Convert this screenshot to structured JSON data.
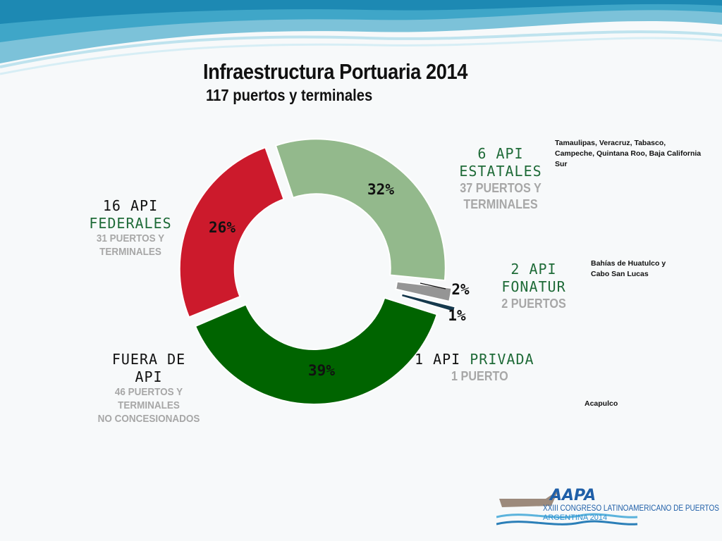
{
  "slide": {
    "title": "Infraestructura Portuaria 2014",
    "subtitle": "117 puertos y terminales"
  },
  "chart_data": {
    "type": "pie",
    "donut": true,
    "slices": [
      {
        "label": "ESTATALES",
        "value": 32,
        "display": "32%",
        "color": "#93b98c"
      },
      {
        "label": "FONATUR",
        "value": 2,
        "display": "2%",
        "color": "#959595"
      },
      {
        "label": "PRIVADA",
        "value": 1,
        "display": "1%",
        "color": "#16394d"
      },
      {
        "label": "FUERA DE API",
        "value": 39,
        "display": "39%",
        "color": "#006400"
      },
      {
        "label": "FEDERALES",
        "value": 26,
        "display": "26%",
        "color": "#cc1a2c"
      }
    ]
  },
  "labels": {
    "federales": {
      "line1": "16 API",
      "line2": "FEDERALES",
      "detail1": "31 PUERTOS Y",
      "detail2": "TERMINALES"
    },
    "estatales": {
      "line1": "6 API",
      "line2": "ESTATALES",
      "detail1": "37 PUERTOS Y",
      "detail2": "TERMINALES"
    },
    "fonatur": {
      "line1": "2 API",
      "line2": "FONATUR",
      "detail": "2 PUERTOS"
    },
    "privada": {
      "prefix": "1 API",
      "word": "PRIVADA",
      "detail": "1 PUERTO"
    },
    "fuera": {
      "line1": "FUERA DE",
      "line2": "API",
      "detail1": "46 PUERTOS Y",
      "detail2": "TERMINALES",
      "detail3": "NO CONCESIONADOS"
    }
  },
  "notes": {
    "estatales": "Tamaulipas, Veracruz, Tabasco, Campeche, Quintana Roo, Baja California Sur",
    "fonatur_line1": "Bahías de Huatulco y",
    "fonatur_line2": "Cabo San Lucas",
    "privada": "Acapulco"
  },
  "logo": {
    "brand": "AAPA",
    "line1": "XXIII CONGRESO LATINOAMERICANO DE PUERTOS",
    "line2": "ARGENTINA 2014"
  },
  "colors": {
    "dark_label": "#111111",
    "green_label": "#1f6b38",
    "gray_detail": "#a7a7a7"
  }
}
